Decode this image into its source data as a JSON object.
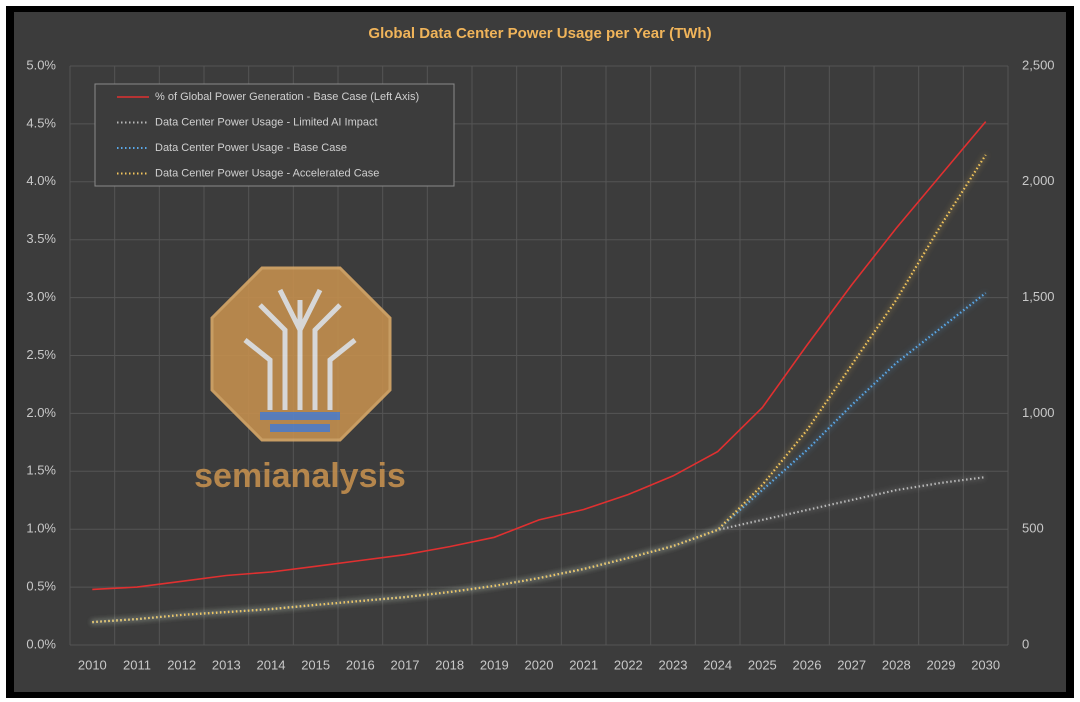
{
  "chart_data": {
    "type": "line",
    "title": "Global Data Center Power Usage per Year (TWh)",
    "watermark": "semianalysis",
    "categories": [
      "2010",
      "2011",
      "2012",
      "2013",
      "2014",
      "2015",
      "2016",
      "2017",
      "2018",
      "2019",
      "2020",
      "2021",
      "2022",
      "2023",
      "2024",
      "2025",
      "2026",
      "2027",
      "2028",
      "2029",
      "2030"
    ],
    "ylim": [
      0,
      5
    ],
    "yticks": [
      {
        "value": 0,
        "label": "0.0%"
      },
      {
        "value": 0.5,
        "label": "0.5%"
      },
      {
        "value": 1,
        "label": "1.0%"
      },
      {
        "value": 1.5,
        "label": "1.5%"
      },
      {
        "value": 2,
        "label": "2.0%"
      },
      {
        "value": 2.5,
        "label": "2.5%"
      },
      {
        "value": 3,
        "label": "3.0%"
      },
      {
        "value": 3.5,
        "label": "3.5%"
      },
      {
        "value": 4,
        "label": "4.0%"
      },
      {
        "value": 4.5,
        "label": "4.5%"
      },
      {
        "value": 5,
        "label": "5.0%"
      }
    ],
    "y2lim": [
      0,
      2500
    ],
    "y2ticks": [
      0,
      500,
      {
        "value": 1000,
        "label": "1,000"
      },
      {
        "value": 1500,
        "label": "1,500"
      },
      {
        "value": 2000,
        "label": "2,000"
      },
      {
        "value": 2500,
        "label": "2,500"
      }
    ],
    "grid": true,
    "legend": "top-left",
    "series": [
      {
        "name": "% of Global Power Generation - Base Case (Left Axis)",
        "color": "#e03030",
        "style": "solid",
        "values": [
          0.48,
          0.5,
          0.55,
          0.6,
          0.63,
          0.68,
          0.73,
          0.78,
          0.85,
          0.93,
          1.08,
          1.17,
          1.3,
          1.46,
          1.67,
          2.05,
          2.59,
          3.11,
          3.6,
          4.06,
          4.52
        ]
      },
      {
        "name": "Data Center Power Usage - Limited AI Impact",
        "color": "#b8b8b8",
        "style": "dotted",
        "axis": "y2",
        "values": [
          99,
          112,
          130,
          142,
          155,
          173,
          190,
          207,
          229,
          255,
          289,
          328,
          376,
          427,
          497,
          540,
          583,
          626,
          669,
          700,
          725
        ]
      },
      {
        "name": "Data Center Power Usage - Base Case",
        "color": "#5aa8e8",
        "style": "dotted",
        "axis": "y2",
        "values": [
          99,
          112,
          130,
          142,
          155,
          173,
          190,
          207,
          229,
          255,
          289,
          328,
          376,
          427,
          497,
          669,
          842,
          1036,
          1218,
          1369,
          1520
        ]
      },
      {
        "name": "Data Center Power Usage - Accelerated Case",
        "color": "#f2c55c",
        "style": "dotted",
        "axis": "y2",
        "values": [
          99,
          112,
          130,
          142,
          155,
          173,
          190,
          207,
          229,
          255,
          289,
          328,
          376,
          427,
          497,
          691,
          928,
          1209,
          1490,
          1813,
          2116
        ]
      }
    ]
  }
}
